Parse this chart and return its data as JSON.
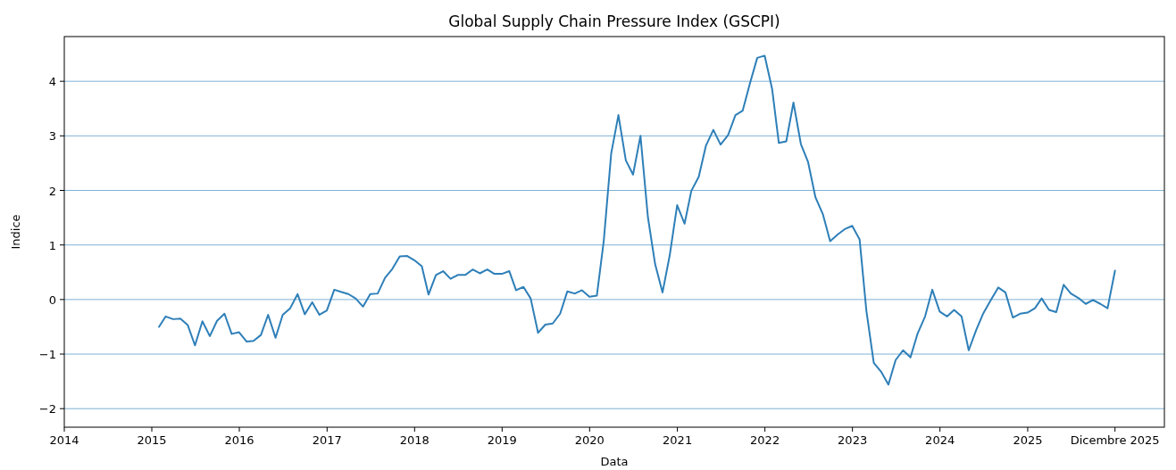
{
  "chart_data": {
    "type": "line",
    "title": "Global Supply Chain Pressure Index (GSCPI)",
    "xlabel": "Data",
    "ylabel": "Indice",
    "x": [
      "2015-01-31",
      "2015-02-28",
      "2015-03-31",
      "2015-04-30",
      "2015-05-31",
      "2015-06-30",
      "2015-07-31",
      "2015-08-31",
      "2015-09-30",
      "2015-10-31",
      "2015-11-30",
      "2015-12-31",
      "2016-01-31",
      "2016-02-29",
      "2016-03-31",
      "2016-04-30",
      "2016-05-31",
      "2016-06-30",
      "2016-07-31",
      "2016-08-31",
      "2016-09-30",
      "2016-10-31",
      "2016-11-30",
      "2016-12-31",
      "2017-01-31",
      "2017-02-28",
      "2017-03-31",
      "2017-04-30",
      "2017-05-31",
      "2017-06-30",
      "2017-07-31",
      "2017-08-31",
      "2017-09-30",
      "2017-10-31",
      "2017-11-30",
      "2017-12-31",
      "2018-01-31",
      "2018-02-28",
      "2018-03-31",
      "2018-04-30",
      "2018-05-31",
      "2018-06-30",
      "2018-07-31",
      "2018-08-31",
      "2018-09-30",
      "2018-10-31",
      "2018-11-30",
      "2018-12-31",
      "2019-01-31",
      "2019-02-28",
      "2019-03-31",
      "2019-04-30",
      "2019-05-31",
      "2019-06-30",
      "2019-07-31",
      "2019-08-31",
      "2019-09-30",
      "2019-10-31",
      "2019-11-30",
      "2019-12-31",
      "2020-01-31",
      "2020-02-29",
      "2020-03-31",
      "2020-04-30",
      "2020-05-31",
      "2020-06-30",
      "2020-07-31",
      "2020-08-31",
      "2020-09-30",
      "2020-10-31",
      "2020-11-30",
      "2020-12-31",
      "2021-01-31",
      "2021-02-28",
      "2021-03-31",
      "2021-04-30",
      "2021-05-31",
      "2021-06-30",
      "2021-07-31",
      "2021-08-31",
      "2021-09-30",
      "2021-10-31",
      "2021-11-30",
      "2021-12-31",
      "2022-01-31",
      "2022-02-28",
      "2022-03-31",
      "2022-04-30",
      "2022-05-31",
      "2022-06-30",
      "2022-07-31",
      "2022-08-31",
      "2022-09-30",
      "2022-10-31",
      "2022-11-30",
      "2022-12-31",
      "2023-01-31",
      "2023-02-28",
      "2023-03-31",
      "2023-04-30",
      "2023-05-31",
      "2023-06-30",
      "2023-07-31",
      "2023-08-31",
      "2023-09-30",
      "2023-10-31",
      "2023-11-30",
      "2023-12-31",
      "2024-01-31",
      "2024-02-29",
      "2024-03-31",
      "2024-04-30",
      "2024-05-31",
      "2024-06-30",
      "2024-07-31",
      "2024-08-31",
      "2024-09-30",
      "2024-10-31",
      "2024-11-30",
      "2024-12-31",
      "2025-01-31",
      "2025-02-28",
      "2025-03-31",
      "2025-04-30",
      "2025-05-31",
      "2025-06-30",
      "2025-07-31",
      "2025-08-31",
      "2025-09-30",
      "2025-10-31",
      "2025-11-30",
      "2025-12-31"
    ],
    "series": [
      {
        "color": "#2e7fb8",
        "values": [
          -0.5,
          -0.31,
          -0.36,
          -0.35,
          -0.47,
          -0.84,
          -0.4,
          -0.67,
          -0.39,
          -0.26,
          -0.63,
          -0.6,
          -0.77,
          -0.76,
          -0.65,
          -0.28,
          -0.7,
          -0.28,
          -0.16,
          0.1,
          -0.27,
          -0.05,
          -0.28,
          -0.2,
          0.18,
          0.14,
          0.1,
          0.02,
          -0.13,
          0.1,
          0.11,
          0.4,
          0.56,
          0.79,
          0.8,
          0.72,
          0.61,
          0.09,
          0.45,
          0.52,
          0.38,
          0.45,
          0.45,
          0.55,
          0.48,
          0.55,
          0.47,
          0.47,
          0.52,
          0.17,
          0.23,
          0.02,
          -0.61,
          -0.46,
          -0.44,
          -0.26,
          0.15,
          0.11,
          0.17,
          0.05,
          0.07,
          1.08,
          2.68,
          3.38,
          2.55,
          2.29,
          3.0,
          1.51,
          0.65,
          0.13,
          0.81,
          1.73,
          1.39,
          1.99,
          2.25,
          2.82,
          3.11,
          2.84,
          3.01,
          3.38,
          3.46,
          3.97,
          4.43,
          4.47,
          3.86,
          2.87,
          2.9,
          3.61,
          2.85,
          2.52,
          1.87,
          1.56,
          1.07,
          1.19,
          1.29,
          1.35,
          1.1,
          -0.2,
          -1.16,
          -1.32,
          -1.56,
          -1.11,
          -0.93,
          -1.06,
          -0.62,
          -0.31,
          0.18,
          -0.22,
          -0.31,
          -0.19,
          -0.31,
          -0.93,
          -0.56,
          -0.25,
          -0.01,
          0.22,
          0.13,
          -0.33,
          -0.26,
          -0.24,
          -0.16,
          0.02,
          -0.19,
          -0.23,
          0.27,
          0.11,
          0.03,
          -0.08,
          -0.01,
          -0.08,
          -0.16,
          0.53
        ]
      }
    ],
    "xlim": [
      "2014-01-01",
      "2026-07-25"
    ],
    "xticks": [
      {
        "value": "2014",
        "label": "2014"
      },
      {
        "value": "2015",
        "label": "2015"
      },
      {
        "value": "2016",
        "label": "2016"
      },
      {
        "value": "2017",
        "label": "2017"
      },
      {
        "value": "2018",
        "label": "2018"
      },
      {
        "value": "2019",
        "label": "2019"
      },
      {
        "value": "2020",
        "label": "2020"
      },
      {
        "value": "2021",
        "label": "2021"
      },
      {
        "value": "2022",
        "label": "2022"
      },
      {
        "value": "2023",
        "label": "2023"
      },
      {
        "value": "2024",
        "label": "2024"
      },
      {
        "value": "2025",
        "label": "2025"
      },
      {
        "value": "2025-12-31",
        "label": "Dicembre 2025"
      }
    ],
    "ylim": [
      -2.34,
      4.82
    ],
    "yticks": [
      -2,
      -1,
      0,
      1,
      2,
      3,
      4
    ],
    "grid": "y",
    "marker": "none",
    "line_style": "solid"
  }
}
